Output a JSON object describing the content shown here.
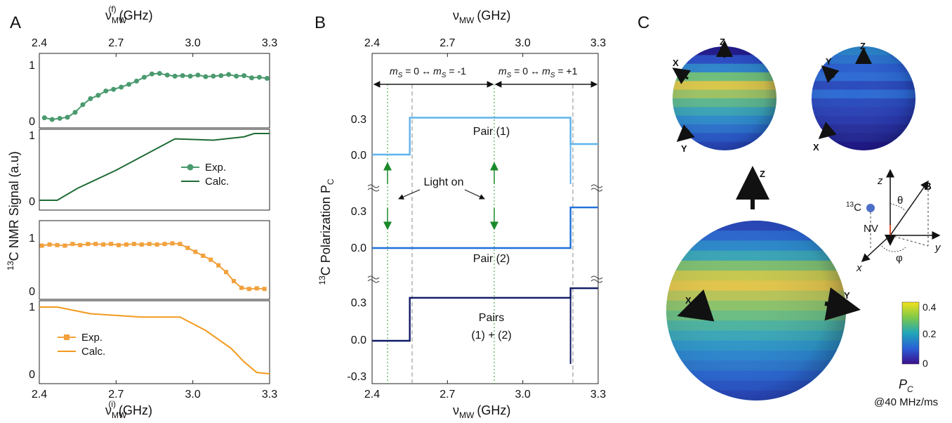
{
  "panels": {
    "a": {
      "letter": "A",
      "top_axis": {
        "label": "ν",
        "sub": "MW",
        "sup": "(f)",
        "unit": "(GHz)"
      },
      "bottom_axis": {
        "label": "ν",
        "sub": "MW",
        "sup": "(i)",
        "unit": "(GHz)"
      },
      "ylabel_sup": "13",
      "ylabel_rest": "C NMR Signal (a.u)",
      "xticks": [
        "2.4",
        "2.7",
        "3.0",
        "3.3"
      ],
      "legend_top": {
        "exp": "Exp.",
        "calc": "Calc."
      },
      "legend_bottom": {
        "exp": "Exp.",
        "calc": "Calc."
      }
    },
    "b": {
      "letter": "B",
      "top_axis": {
        "label": "ν",
        "sub": "MW",
        "unit": "(GHz)"
      },
      "bottom_axis": {
        "label": "ν",
        "sub": "MW",
        "unit": "(GHz)"
      },
      "ylabel_sup": "13",
      "ylabel_rest": "C Polarization P",
      "ylabel_sub": "C",
      "xticks": [
        "2.4",
        "2.7",
        "3.0",
        "3.3"
      ],
      "trans1": "m",
      "trans1_full": [
        "m",
        "S",
        " = 0",
        "↔",
        "m",
        "S",
        " = -1"
      ],
      "trans2_full": [
        "m",
        "S",
        " = 0",
        "↔",
        "m",
        "S",
        " = +1"
      ],
      "light_on": "Light on",
      "pair1": "Pair (1)",
      "pair2": "Pair (2)",
      "pairs_a": "Pairs",
      "pairs_b": "(1) + (2)"
    },
    "c": {
      "letter": "C",
      "axes": {
        "z": "Z",
        "x": "X",
        "y": "Y"
      },
      "inset": {
        "c13": "C",
        "c13_sup": "13",
        "nv": "NV",
        "B": "B",
        "theta": "θ",
        "phi": "φ",
        "x": "x",
        "y": "y",
        "z": "z"
      },
      "colorbar": {
        "ticks": [
          "0.4",
          "0.2",
          "0"
        ],
        "label": "P",
        "label_sub": "C",
        "rate": "@40 MHz/ms",
        "colors": [
          "#3b0f8c",
          "#2a5fd6",
          "#20a6b8",
          "#7cc84a",
          "#f3e21c"
        ]
      }
    }
  },
  "chart_data": [
    {
      "type": "line",
      "title": "",
      "xlabel": "ν_MW^(f) (GHz)",
      "ylabel": "13C NMR Signal (a.u)",
      "ylim": [
        0,
        1
      ],
      "xlim": [
        2.4,
        3.3
      ],
      "series": [
        {
          "name": "Exp.",
          "color": "#4a9a6e",
          "x": [
            2.42,
            2.45,
            2.48,
            2.51,
            2.54,
            2.57,
            2.6,
            2.63,
            2.66,
            2.69,
            2.72,
            2.75,
            2.78,
            2.81,
            2.84,
            2.87,
            2.9,
            2.93,
            2.96,
            2.99,
            3.02,
            3.05,
            3.08,
            3.11,
            3.14,
            3.17,
            3.2,
            3.23,
            3.26,
            3.29
          ],
          "y": [
            0.03,
            0.0,
            0.02,
            0.04,
            0.13,
            0.27,
            0.38,
            0.44,
            0.52,
            0.55,
            0.59,
            0.64,
            0.7,
            0.77,
            0.83,
            0.84,
            0.81,
            0.79,
            0.8,
            0.79,
            0.81,
            0.78,
            0.79,
            0.8,
            0.82,
            0.79,
            0.8,
            0.76,
            0.77,
            0.75
          ]
        },
        {
          "name": "Calc.",
          "color": "#1f6b35",
          "x": [
            2.4,
            2.47,
            2.55,
            2.7,
            2.93,
            3.08,
            3.2,
            3.24,
            3.3
          ],
          "y": [
            0.0,
            0.0,
            0.18,
            0.45,
            0.92,
            0.9,
            0.95,
            1.0,
            1.0
          ]
        }
      ]
    },
    {
      "type": "line",
      "title": "",
      "xlabel": "ν_MW^(i) (GHz)",
      "ylabel": "13C NMR Signal (a.u)",
      "ylim": [
        0,
        1
      ],
      "xlim": [
        2.4,
        3.3
      ],
      "series": [
        {
          "name": "Exp.",
          "color": "#f2a13d",
          "x": [
            2.41,
            2.44,
            2.47,
            2.5,
            2.53,
            2.56,
            2.59,
            2.62,
            2.65,
            2.68,
            2.71,
            2.74,
            2.77,
            2.8,
            2.83,
            2.86,
            2.89,
            2.92,
            2.95,
            2.98,
            3.01,
            3.04,
            3.07,
            3.1,
            3.13,
            3.16,
            3.19,
            3.22,
            3.25,
            3.28
          ],
          "y": [
            0.83,
            0.85,
            0.84,
            0.83,
            0.86,
            0.84,
            0.86,
            0.86,
            0.85,
            0.86,
            0.84,
            0.85,
            0.86,
            0.85,
            0.86,
            0.85,
            0.86,
            0.87,
            0.86,
            0.79,
            0.72,
            0.65,
            0.58,
            0.48,
            0.36,
            0.2,
            0.08,
            0.06,
            0.07,
            0.06
          ]
        },
        {
          "name": "Calc.",
          "color": "#f29a1f",
          "x": [
            2.4,
            2.47,
            2.6,
            2.8,
            2.95,
            3.05,
            3.15,
            3.2,
            3.25,
            3.3
          ],
          "y": [
            1.0,
            1.0,
            0.9,
            0.85,
            0.85,
            0.65,
            0.38,
            0.18,
            0.02,
            0.0
          ]
        }
      ]
    },
    {
      "type": "line",
      "title": "",
      "xlabel": "ν_MW (GHz)",
      "ylabel": "13C Polarization P_C",
      "xlim": [
        2.4,
        3.3
      ],
      "series": [
        {
          "name": "Pair (1)",
          "color": "#5fb3ec",
          "x": [
            2.4,
            2.55,
            2.55,
            3.19,
            3.19,
            3.3
          ],
          "y": [
            0.0,
            0.0,
            0.35,
            0.35,
            0.1,
            0.1
          ]
        },
        {
          "name": "Pair (2)",
          "color": "#1f6fd9",
          "x": [
            2.4,
            3.19,
            3.19,
            3.3
          ],
          "y": [
            0.0,
            0.0,
            0.34,
            0.34
          ]
        },
        {
          "name": "Pairs (1) + (2)",
          "color": "#101a66",
          "x": [
            2.4,
            2.55,
            2.55,
            3.19,
            3.19,
            3.3
          ],
          "y": [
            0.0,
            0.0,
            0.36,
            0.36,
            0.44,
            0.44
          ]
        }
      ]
    }
  ]
}
